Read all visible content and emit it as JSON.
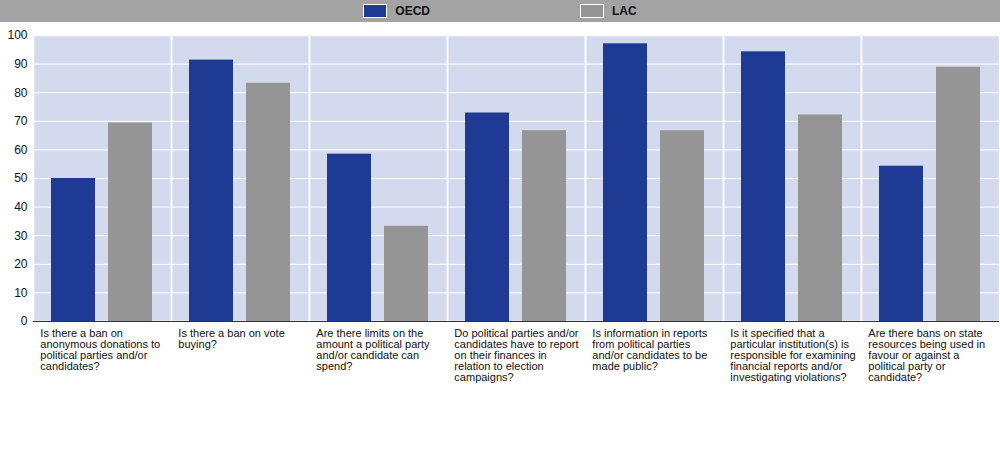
{
  "chart_data": {
    "type": "bar",
    "categories": [
      "Is there a ban on anonymous donations to political parties and/or candidates?",
      "Is there a ban on vote buying?",
      "Are there limits on the amount a political party and/or candidate can spend?",
      "Do political parties and/or candidates have to report on their finances in relation to election campaigns?",
      "Is information in reports from political parties and/or candidates to be made public?",
      "Is it specified that a particular institution(s) is responsible for examining financial reports and/or investigating violations?",
      "Are there bans on state resources being used in favour or against a political party or candidate?"
    ],
    "series": [
      {
        "name": "OECD",
        "color": "#1f3a93",
        "values": [
          50,
          91.4,
          58.5,
          72.9,
          97.1,
          94.3,
          54.3
        ]
      },
      {
        "name": "LAC",
        "color": "#959595",
        "values": [
          69.4,
          83.3,
          33.3,
          66.7,
          66.7,
          72.2,
          88.9
        ]
      }
    ],
    "ylim": [
      0,
      100
    ],
    "yticks": [
      0,
      10,
      20,
      30,
      40,
      50,
      60,
      70,
      80,
      90,
      100
    ],
    "grid": true,
    "legend": "top"
  }
}
